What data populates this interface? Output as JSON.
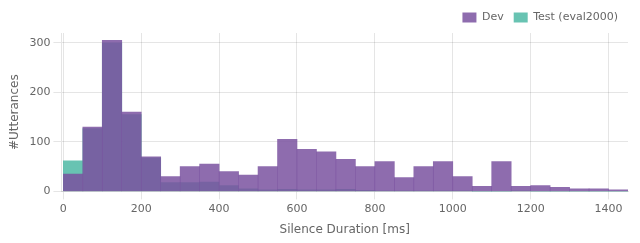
{
  "chart_data": {
    "type": "histogram",
    "bins": [
      0,
      50,
      100,
      150,
      200,
      250,
      300,
      350,
      400,
      450,
      500,
      550,
      600,
      650,
      700,
      750,
      800,
      850,
      900,
      950,
      1000,
      1050,
      1100,
      1150,
      1200,
      1250,
      1300,
      1350,
      1400,
      1450
    ],
    "series": [
      {
        "name": "Dev",
        "color": "#7a52a0",
        "values": [
          35,
          130,
          305,
          160,
          70,
          30,
          50,
          55,
          40,
          33,
          50,
          105,
          85,
          80,
          65,
          50,
          60,
          28,
          50,
          60,
          30,
          10,
          60,
          10,
          12,
          8,
          5,
          5,
          3
        ]
      },
      {
        "name": "Test (eval2000)",
        "color": "#4db8a4",
        "values": [
          62,
          127,
          300,
          155,
          68,
          18,
          18,
          19,
          12,
          5,
          3,
          4,
          3,
          3,
          4,
          2,
          1,
          1,
          1,
          1,
          1,
          0,
          0,
          1,
          0,
          0,
          0,
          0,
          0
        ]
      }
    ],
    "xlabel": "Silence Duration [ms]",
    "ylabel": "#Utterances",
    "xlim": [
      -5,
      1450
    ],
    "ylim": [
      0,
      320
    ],
    "xticks": [
      0,
      200,
      400,
      600,
      800,
      1000,
      1200,
      1400
    ],
    "yticks": [
      0,
      100,
      200,
      300
    ],
    "grid": true,
    "legend": "upper right"
  }
}
